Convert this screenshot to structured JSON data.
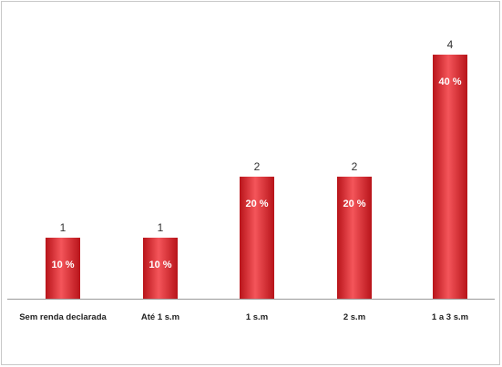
{
  "colors": {
    "bar": "#e8262b",
    "bar_dark": "#b8141a",
    "bar_light": "#f4555a",
    "baseline": "#9a9a9a"
  },
  "chart_data": {
    "type": "bar",
    "categories": [
      "Sem renda declarada",
      "Até 1 s.m",
      "1 s.m",
      "2 s.m",
      "1 a 3 s.m"
    ],
    "values": [
      1,
      1,
      2,
      2,
      4
    ],
    "percent_labels": [
      "10 %",
      "10 %",
      "20 %",
      "20 %",
      "40 %"
    ],
    "value_labels": [
      "1",
      "1",
      "2",
      "2",
      "4"
    ],
    "title": "",
    "xlabel": "",
    "ylabel": "",
    "ylim": [
      0,
      4
    ],
    "grid": false,
    "legend": "none"
  }
}
